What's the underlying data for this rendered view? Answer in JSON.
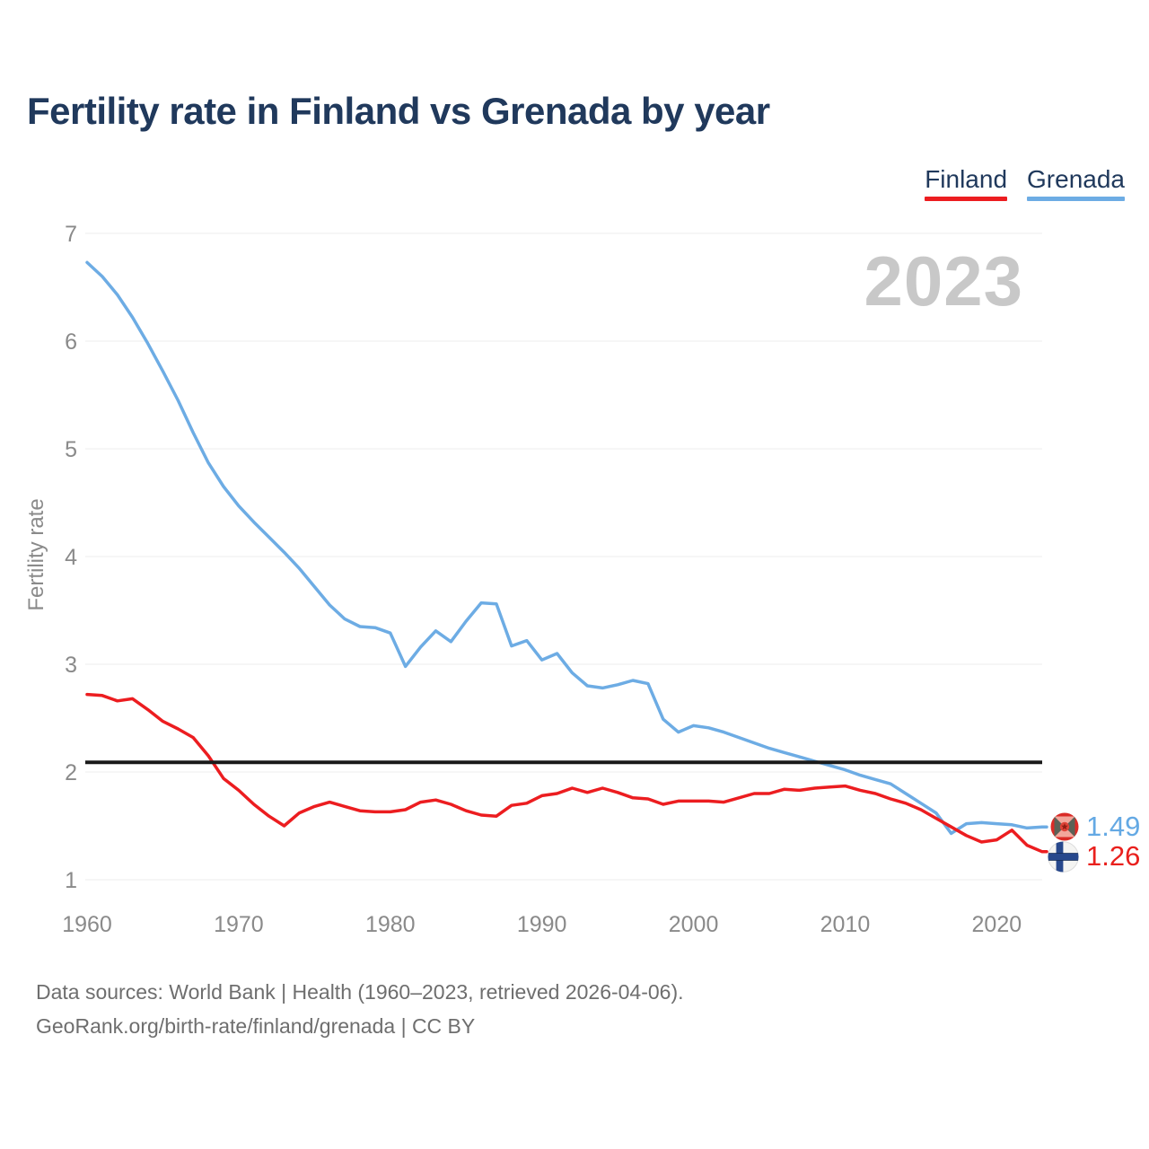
{
  "header": {
    "title": "Fertility rate in Finland vs Grenada by year"
  },
  "legend": {
    "items": [
      {
        "label": "Finland",
        "color": "#ec1d20"
      },
      {
        "label": "Grenada",
        "color": "#6dace4"
      }
    ]
  },
  "chart_data": {
    "type": "line",
    "title": "Fertility rate in Finland vs Grenada by year",
    "xlabel": "",
    "ylabel": "Fertility rate",
    "x_range": [
      1960,
      2023
    ],
    "xticks": [
      1960,
      1970,
      1980,
      1990,
      2000,
      2010,
      2020
    ],
    "yticks": [
      1,
      2,
      3,
      4,
      5,
      6,
      7
    ],
    "ylim": [
      1,
      7
    ],
    "grid": "horizontal",
    "legend_position": "top-right",
    "watermark": "2023",
    "reference_line": {
      "value": 2.09,
      "color": "#1a1a1a"
    },
    "series": [
      {
        "name": "Finland",
        "color": "#ec1d20",
        "end_label": "1.26",
        "values": [
          2.72,
          2.71,
          2.66,
          2.68,
          2.58,
          2.47,
          2.4,
          2.32,
          2.15,
          1.94,
          1.83,
          1.7,
          1.59,
          1.5,
          1.62,
          1.68,
          1.72,
          1.68,
          1.64,
          1.63,
          1.63,
          1.65,
          1.72,
          1.74,
          1.7,
          1.64,
          1.6,
          1.59,
          1.69,
          1.71,
          1.78,
          1.8,
          1.85,
          1.81,
          1.85,
          1.81,
          1.76,
          1.75,
          1.7,
          1.73,
          1.73,
          1.73,
          1.72,
          1.76,
          1.8,
          1.8,
          1.84,
          1.83,
          1.85,
          1.86,
          1.87,
          1.83,
          1.8,
          1.75,
          1.71,
          1.65,
          1.57,
          1.49,
          1.41,
          1.35,
          1.37,
          1.46,
          1.32,
          1.26
        ]
      },
      {
        "name": "Grenada",
        "color": "#6dace4",
        "end_label": "1.49",
        "values": [
          6.73,
          6.6,
          6.43,
          6.22,
          5.98,
          5.72,
          5.45,
          5.15,
          4.87,
          4.65,
          4.47,
          4.32,
          4.18,
          4.04,
          3.89,
          3.72,
          3.55,
          3.42,
          3.35,
          3.34,
          3.29,
          2.98,
          3.16,
          3.31,
          3.21,
          3.4,
          3.57,
          3.56,
          3.17,
          3.22,
          3.04,
          3.1,
          2.92,
          2.8,
          2.78,
          2.81,
          2.85,
          2.82,
          2.49,
          2.37,
          2.43,
          2.41,
          2.37,
          2.32,
          2.27,
          2.22,
          2.18,
          2.14,
          2.1,
          2.06,
          2.02,
          1.97,
          1.93,
          1.89,
          1.8,
          1.71,
          1.62,
          1.43,
          1.52,
          1.53,
          1.52,
          1.51,
          1.48,
          1.49
        ]
      }
    ]
  },
  "end_labels": {
    "grenada": {
      "value": "1.49",
      "color": "#64a9e4",
      "flag": "grenada-flag"
    },
    "finland": {
      "value": "1.26",
      "color": "#e9201d",
      "flag": "finland-flag"
    }
  },
  "footer": {
    "line1": "Data sources: World Bank | Health (1960–2023, retrieved 2026-04-06).",
    "line2": "GeoRank.org/birth-rate/finland/grenada | CC BY"
  }
}
